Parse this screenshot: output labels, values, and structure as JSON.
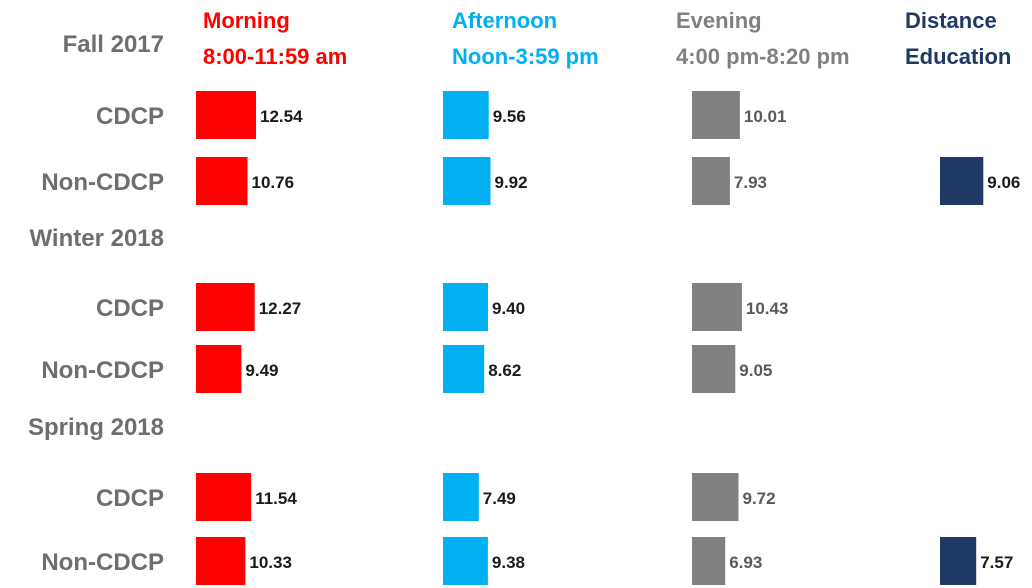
{
  "chart_data": {
    "type": "bar",
    "columns": [
      {
        "key": "morning",
        "line1": "Morning",
        "line2": "8:00-11:59 am",
        "color": "#ff0000"
      },
      {
        "key": "afternoon",
        "line1": "Afternoon",
        "line2": "Noon-3:59 pm",
        "color": "#00b0f0"
      },
      {
        "key": "evening",
        "line1": "Evening",
        "line2": "4:00 pm-8:20 pm",
        "color": "#808080"
      },
      {
        "key": "distance",
        "line1": "Distance",
        "line2": "Education",
        "color": "#1f3864"
      }
    ],
    "terms": [
      {
        "name": "Fall 2017",
        "rows": [
          {
            "label": "CDCP",
            "values": {
              "morning": "12.54",
              "afternoon": "9.56",
              "evening": "10.01"
            }
          },
          {
            "label": "Non-CDCP",
            "values": {
              "morning": "10.76",
              "afternoon": "9.92",
              "evening": "7.93",
              "distance": "9.06"
            }
          }
        ]
      },
      {
        "name": "Winter 2018",
        "rows": [
          {
            "label": "CDCP",
            "values": {
              "morning": "12.27",
              "afternoon": "9.40",
              "evening": "10.43"
            }
          },
          {
            "label": "Non-CDCP",
            "values": {
              "morning": "9.49",
              "afternoon": "8.62",
              "evening": "9.05"
            }
          }
        ]
      },
      {
        "name": "Spring 2018",
        "rows": [
          {
            "label": "CDCP",
            "values": {
              "morning": "11.54",
              "afternoon": "7.49",
              "evening": "9.72"
            }
          },
          {
            "label": "Non-CDCP",
            "values": {
              "morning": "10.33",
              "afternoon": "9.38",
              "evening": "6.93",
              "distance": "7.57"
            }
          }
        ]
      }
    ]
  }
}
